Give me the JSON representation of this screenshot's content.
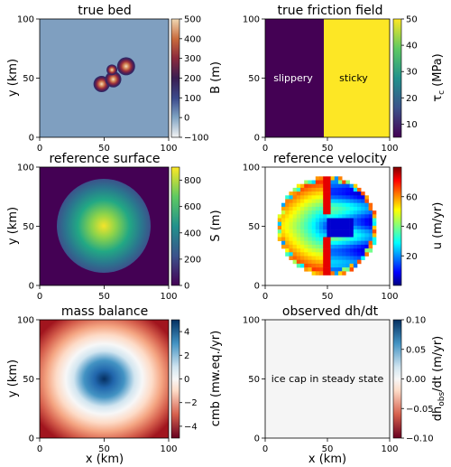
{
  "chart_data": [
    {
      "type": "heatmap",
      "title": "true bed",
      "xlabel": "",
      "ylabel": "y (km)",
      "xlim": [
        0,
        100
      ],
      "ylim": [
        0,
        100
      ],
      "xticks": [
        "0",
        "50",
        "100"
      ],
      "yticks": [
        "0",
        "50",
        "100"
      ],
      "colorbar": {
        "label": "B (m)",
        "range": [
          -100,
          500
        ],
        "ticks": [
          "500",
          "400",
          "300",
          "200",
          "100",
          "0",
          "−100"
        ]
      },
      "background_value": 0,
      "features": [
        {
          "x": 48,
          "y": 45,
          "peak": 500
        },
        {
          "x": 57,
          "y": 49,
          "peak": 500
        },
        {
          "x": 67,
          "y": 60,
          "peak": 500
        },
        {
          "x": 56,
          "y": 57,
          "peak": 500
        }
      ]
    },
    {
      "type": "heatmap",
      "title": "true friction field",
      "xlabel": "",
      "ylabel": "",
      "xlim": [
        0,
        100
      ],
      "ylim": [
        0,
        100
      ],
      "xticks": [
        "0",
        "50",
        "100"
      ],
      "yticks": [
        "0",
        "50",
        "100"
      ],
      "colorbar": {
        "label": "τc (MPa)",
        "range": [
          5,
          50
        ],
        "ticks": [
          "50",
          "40",
          "30",
          "20",
          "10"
        ]
      },
      "regions": [
        {
          "x_range": [
            0,
            50
          ],
          "value": 5,
          "label": "slippery"
        },
        {
          "x_range": [
            50,
            100
          ],
          "value": 50,
          "label": "sticky"
        }
      ]
    },
    {
      "type": "heatmap",
      "title": "reference surface",
      "xlabel": "",
      "ylabel": "y (km)",
      "xlim": [
        0,
        100
      ],
      "ylim": [
        0,
        100
      ],
      "xticks": [
        "0",
        "50",
        "100"
      ],
      "yticks": [
        "0",
        "50",
        "100"
      ],
      "colorbar": {
        "label": "S (m)",
        "range": [
          0,
          900
        ],
        "ticks": [
          "800",
          "600",
          "400",
          "200",
          "0"
        ]
      },
      "ice_cap": {
        "center": [
          50,
          50
        ],
        "radius": 38,
        "max_value": 900
      }
    },
    {
      "type": "heatmap",
      "title": "reference velocity",
      "xlabel": "",
      "ylabel": "",
      "xlim": [
        0,
        100
      ],
      "ylim": [
        0,
        100
      ],
      "xticks": [
        "0",
        "50",
        "100"
      ],
      "yticks": [
        "0",
        "50",
        "100"
      ],
      "colorbar": {
        "label": "u (m/yr)",
        "range": [
          0,
          80
        ],
        "ticks": [
          "60",
          "40",
          "20"
        ]
      },
      "ice_cap": {
        "center": [
          50,
          50
        ],
        "radius": 38
      }
    },
    {
      "type": "heatmap",
      "title": "mass balance",
      "xlabel": "x (km)",
      "ylabel": "y (km)",
      "xlim": [
        0,
        100
      ],
      "ylim": [
        0,
        100
      ],
      "xticks": [
        "0",
        "50",
        "100"
      ],
      "yticks": [
        "0",
        "50",
        "100"
      ],
      "colorbar": {
        "label": "cmb (mw.eq./yr)",
        "range": [
          -5,
          5
        ],
        "ticks": [
          "4",
          "2",
          "0",
          "−2",
          "−4"
        ]
      },
      "center": [
        50,
        50
      ],
      "center_value": 5,
      "edge_value": -5
    },
    {
      "type": "heatmap",
      "title": "observed dh/dt",
      "xlabel": "x (km)",
      "ylabel": "",
      "xlim": [
        0,
        100
      ],
      "ylim": [
        0,
        100
      ],
      "xticks": [
        "0",
        "50",
        "100"
      ],
      "yticks": [
        "0",
        "50",
        "100"
      ],
      "colorbar": {
        "label": "dhobs/dt (m/yr)",
        "range": [
          -0.1,
          0.1
        ],
        "ticks": [
          "0.10",
          "0.05",
          "0.00",
          "−0.05",
          "−0.10"
        ]
      },
      "value": 0,
      "annotation": "ice cap in steady state"
    }
  ]
}
